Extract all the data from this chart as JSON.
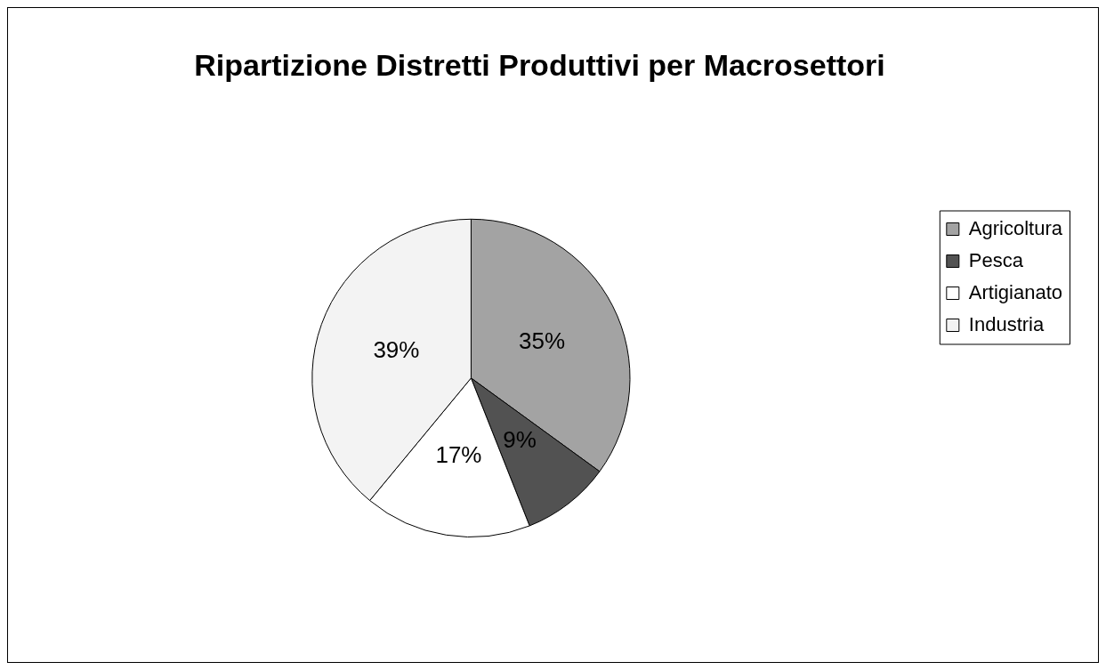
{
  "chart_data": {
    "type": "pie",
    "title": "Ripartizione Distretti Produttivi per Macrosettori",
    "categories": [
      "Agricoltura",
      "Pesca",
      "Artigianato",
      "Industria"
    ],
    "values": [
      35,
      9,
      17,
      39
    ],
    "value_labels": [
      "35%",
      "9%",
      "17%",
      "39%"
    ],
    "colors": [
      "#a3a3a3",
      "#525252",
      "#ffffff",
      "#f3f3f3"
    ],
    "legend": "right"
  }
}
